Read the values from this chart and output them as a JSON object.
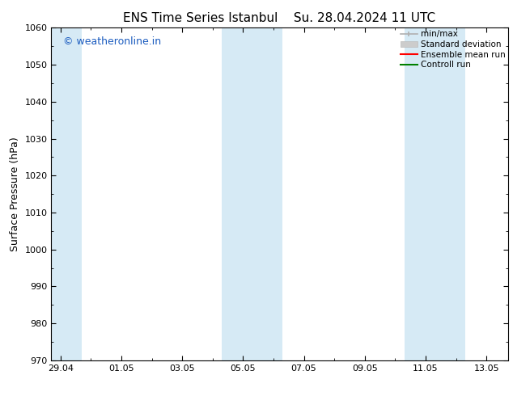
{
  "title_left": "ENS Time Series Istanbul",
  "title_right": "Su. 28.04.2024 11 UTC",
  "ylabel": "Surface Pressure (hPa)",
  "ylim": [
    970,
    1060
  ],
  "yticks": [
    970,
    980,
    990,
    1000,
    1010,
    1020,
    1030,
    1040,
    1050,
    1060
  ],
  "xtick_labels": [
    "29.04",
    "01.05",
    "03.05",
    "05.05",
    "07.05",
    "09.05",
    "11.05",
    "13.05"
  ],
  "xtick_positions": [
    0,
    2,
    4,
    6,
    8,
    10,
    12,
    14
  ],
  "xlim": [
    -0.3,
    14.7
  ],
  "shaded_bands": [
    {
      "x_start": -0.3,
      "x_end": 0.7
    },
    {
      "x_start": 5.3,
      "x_end": 7.3
    },
    {
      "x_start": 11.3,
      "x_end": 13.3
    }
  ],
  "shade_color": "#d6eaf5",
  "watermark_text": "© weatheronline.in",
  "watermark_color": "#1a5bbf",
  "legend_entries": [
    {
      "label": "min/max",
      "color": "#b0b0b0",
      "lw": 1.2,
      "ls": "-"
    },
    {
      "label": "Standard deviation",
      "color": "#cccccc",
      "lw": 6,
      "ls": "-"
    },
    {
      "label": "Ensemble mean run",
      "color": "red",
      "lw": 1.5,
      "ls": "-"
    },
    {
      "label": "Controll run",
      "color": "green",
      "lw": 1.5,
      "ls": "-"
    }
  ],
  "bg_color": "#ffffff",
  "title_fontsize": 11,
  "tick_fontsize": 8,
  "ylabel_fontsize": 9,
  "watermark_fontsize": 9,
  "legend_fontsize": 7.5
}
